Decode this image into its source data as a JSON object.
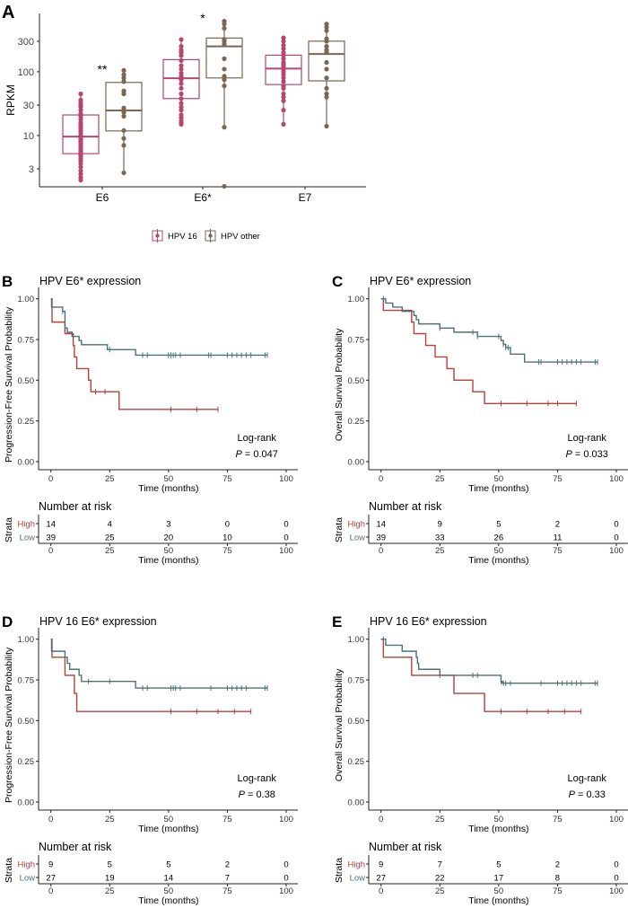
{
  "colors": {
    "hpv16": "#b5476f",
    "hpv_other": "#7a6652",
    "high": "#b5413a",
    "low": "#4d7279",
    "axis": "#222222"
  },
  "chart_data": [
    {
      "type": "box",
      "panel_label": "A",
      "ylabel": "RPKM",
      "yscale": "log",
      "ylim": [
        1.57,
        820
      ],
      "yticks": [
        3,
        10,
        30,
        100,
        300
      ],
      "ytick_labels": [
        "3",
        "10",
        "30",
        "100",
        "300"
      ],
      "categories": [
        "E6",
        "E6*",
        "E7"
      ],
      "annotations": [
        {
          "category": "E6",
          "text": "**"
        },
        {
          "category": "E6*",
          "text": "*"
        }
      ],
      "legend": {
        "position": "bottom",
        "entries": [
          "HPV 16",
          "HPV other"
        ]
      },
      "series": [
        {
          "name": "HPV 16",
          "boxes": [
            {
              "min": 2,
              "q1": 5.2,
              "median": 9.6,
              "q3": 21,
              "max": 45,
              "points": [
                2,
                2.2,
                2.5,
                2.8,
                3.2,
                3.6,
                4,
                4.3,
                4.7,
                5,
                5.3,
                5.7,
                6,
                6.5,
                7,
                7.5,
                8,
                8.5,
                9,
                10,
                11,
                12,
                13,
                14,
                15,
                16,
                18,
                20,
                22,
                25,
                28,
                30,
                33,
                36,
                45
              ]
            },
            {
              "min": 15,
              "q1": 38,
              "median": 79,
              "q3": 155,
              "max": 320,
              "points": [
                15,
                16,
                17,
                19,
                21,
                25,
                28,
                32,
                38,
                45,
                55,
                65,
                75,
                85,
                95,
                110,
                125,
                150,
                180,
                200,
                220,
                250,
                320
              ]
            },
            {
              "min": 15,
              "q1": 63,
              "median": 112,
              "q3": 182,
              "max": 340,
              "points": [
                15,
                25,
                35,
                40,
                45,
                55,
                60,
                70,
                80,
                90,
                100,
                110,
                120,
                130,
                140,
                160,
                180,
                200,
                230,
                260,
                300,
                340
              ]
            }
          ]
        },
        {
          "name": "HPV other",
          "boxes": [
            {
              "min": 2.6,
              "q1": 11.8,
              "median": 24.7,
              "q3": 68,
              "max": 105,
              "points": [
                2.6,
                7,
                9,
                12,
                20,
                23,
                25,
                27,
                45,
                50,
                70,
                80,
                90,
                105
              ]
            },
            {
              "min": 13.5,
              "q1": 80,
              "median": 250,
              "q3": 338,
              "max": 620,
              "outliers": [
                1.6
              ],
              "points": [
                1.6,
                13.5,
                60,
                75,
                85,
                110,
                160,
                270,
                300,
                320,
                480,
                560,
                620
              ]
            },
            {
              "min": 14,
              "q1": 72,
              "median": 190,
              "q3": 302,
              "max": 560,
              "points": [
                14,
                40,
                45,
                55,
                80,
                110,
                140,
                200,
                220,
                250,
                300,
                330,
                440,
                500,
                560
              ]
            }
          ]
        }
      ]
    },
    {
      "type": "line",
      "subtype": "kaplan-meier",
      "panel_label": "B",
      "title": "HPV E6* expression",
      "ylabel": "Progression-Free Survival Probability",
      "xlabel": "Time (months)",
      "xlim": [
        0,
        100
      ],
      "ylim": [
        0,
        1
      ],
      "xticks": [
        "0",
        "25",
        "50",
        "75",
        "100"
      ],
      "yticks": [
        "0.00",
        "0.25",
        "0.50",
        "0.75",
        "1.00"
      ],
      "test_label": "Log-rank",
      "p_label": "P",
      "p_value": "= 0.047",
      "series": [
        {
          "name": "High",
          "steps": [
            [
              0,
              1
            ],
            [
              0.5,
              0.857
            ],
            [
              6,
              0.786
            ],
            [
              9.5,
              0.714
            ],
            [
              10,
              0.643
            ],
            [
              11,
              0.571
            ],
            [
              16,
              0.5
            ],
            [
              17,
              0.429
            ],
            [
              29,
              0.321
            ]
          ],
          "end": 71,
          "censored": [
            19,
            23,
            51,
            62,
            71
          ]
        },
        {
          "name": "Low",
          "steps": [
            [
              0,
              1
            ],
            [
              0.3,
              0.949
            ],
            [
              5,
              0.923
            ],
            [
              6,
              0.82
            ],
            [
              7,
              0.795
            ],
            [
              9,
              0.769
            ],
            [
              12,
              0.744
            ],
            [
              13,
              0.718
            ],
            [
              24,
              0.688
            ],
            [
              36,
              0.654
            ]
          ],
          "end": 92,
          "censored": [
            5,
            25,
            39,
            41,
            50,
            51,
            52,
            53,
            55,
            67,
            68,
            75,
            77,
            79,
            81,
            83,
            85,
            91,
            92
          ]
        }
      ],
      "risk_table": {
        "title": "Number at risk",
        "strata_label": "Strata",
        "times": [
          0,
          25,
          50,
          75,
          100
        ],
        "rows": [
          {
            "name": "High",
            "values": [
              "14",
              "4",
              "3",
              "0",
              "0"
            ]
          },
          {
            "name": "Low",
            "values": [
              "39",
              "25",
              "20",
              "10",
              "0"
            ]
          }
        ]
      }
    },
    {
      "type": "line",
      "subtype": "kaplan-meier",
      "panel_label": "C",
      "title": "HPV E6* expression",
      "ylabel": "Overall Survival Probability",
      "xlabel": "Time (months)",
      "xlim": [
        0,
        100
      ],
      "ylim": [
        0,
        1
      ],
      "xticks": [
        "0",
        "25",
        "50",
        "75",
        "100"
      ],
      "yticks": [
        "0.00",
        "0.25",
        "0.50",
        "0.75",
        "1.00"
      ],
      "test_label": "Log-rank",
      "p_label": "P",
      "p_value": "= 0.033",
      "series": [
        {
          "name": "High",
          "steps": [
            [
              0,
              1
            ],
            [
              1,
              0.929
            ],
            [
              13,
              0.857
            ],
            [
              14,
              0.786
            ],
            [
              19,
              0.714
            ],
            [
              23,
              0.643
            ],
            [
              28,
              0.571
            ],
            [
              31,
              0.5
            ],
            [
              39,
              0.429
            ],
            [
              44,
              0.357
            ]
          ],
          "end": 83,
          "censored": [
            51,
            62,
            71,
            75,
            83
          ]
        },
        {
          "name": "Low",
          "steps": [
            [
              0,
              1
            ],
            [
              2,
              0.974
            ],
            [
              5,
              0.949
            ],
            [
              9,
              0.923
            ],
            [
              14,
              0.897
            ],
            [
              15,
              0.872
            ],
            [
              16,
              0.846
            ],
            [
              25,
              0.82
            ],
            [
              31,
              0.795
            ],
            [
              41,
              0.769
            ],
            [
              51,
              0.744
            ],
            [
              52,
              0.72
            ],
            [
              53,
              0.7
            ],
            [
              55,
              0.66
            ],
            [
              61,
              0.612
            ]
          ],
          "end": 92,
          "censored": [
            1,
            25,
            39,
            41,
            50,
            52,
            53,
            54,
            67,
            68,
            75,
            77,
            79,
            81,
            83,
            85,
            91,
            92
          ]
        }
      ],
      "risk_table": {
        "title": "Number at risk",
        "strata_label": "Strata",
        "times": [
          0,
          25,
          50,
          75,
          100
        ],
        "rows": [
          {
            "name": "High",
            "values": [
              "14",
              "9",
              "5",
              "2",
              "0"
            ]
          },
          {
            "name": "Low",
            "values": [
              "39",
              "33",
              "26",
              "11",
              "0"
            ]
          }
        ]
      }
    },
    {
      "type": "line",
      "subtype": "kaplan-meier",
      "panel_label": "D",
      "title": "HPV 16 E6* expression",
      "ylabel": "Progression-Free Survival Probability",
      "xlabel": "Time (months)",
      "xlim": [
        0,
        100
      ],
      "ylim": [
        0,
        1
      ],
      "xticks": [
        "0",
        "25",
        "50",
        "75",
        "100"
      ],
      "yticks": [
        "0.00",
        "0.25",
        "0.50",
        "0.75",
        "1.00"
      ],
      "test_label": "Log-rank",
      "p_label": "P",
      "p_value": "= 0.38",
      "series": [
        {
          "name": "High",
          "steps": [
            [
              0,
              1
            ],
            [
              0.5,
              0.889
            ],
            [
              6,
              0.778
            ],
            [
              10,
              0.667
            ],
            [
              11,
              0.556
            ]
          ],
          "end": 85,
          "censored": [
            51,
            62,
            71,
            78,
            85
          ]
        },
        {
          "name": "Low",
          "steps": [
            [
              0,
              1
            ],
            [
              0.3,
              0.926
            ],
            [
              6,
              0.889
            ],
            [
              7,
              0.852
            ],
            [
              8,
              0.815
            ],
            [
              12,
              0.778
            ],
            [
              13,
              0.741
            ],
            [
              36,
              0.7
            ]
          ],
          "end": 92,
          "censored": [
            16,
            25,
            39,
            41,
            51,
            52,
            53,
            55,
            68,
            75,
            77,
            79,
            81,
            83,
            91,
            92
          ]
        }
      ],
      "risk_table": {
        "title": "Number at risk",
        "strata_label": "Strata",
        "times": [
          0,
          25,
          50,
          75,
          100
        ],
        "rows": [
          {
            "name": "High",
            "values": [
              "9",
              "5",
              "5",
              "2",
              "0"
            ]
          },
          {
            "name": "Low",
            "values": [
              "27",
              "19",
              "14",
              "7",
              "0"
            ]
          }
        ]
      }
    },
    {
      "type": "line",
      "subtype": "kaplan-meier",
      "panel_label": "E",
      "title": "HPV 16 E6* expression",
      "ylabel": "Overall Survival Probability",
      "xlabel": "Time (months)",
      "xlim": [
        0,
        100
      ],
      "ylim": [
        0,
        1
      ],
      "xticks": [
        "0",
        "25",
        "50",
        "75",
        "100"
      ],
      "yticks": [
        "0.00",
        "0.25",
        "0.50",
        "0.75",
        "1.00"
      ],
      "test_label": "Log-rank",
      "p_label": "P",
      "p_value": "= 0.33",
      "series": [
        {
          "name": "High",
          "steps": [
            [
              0,
              1
            ],
            [
              1,
              0.889
            ],
            [
              13,
              0.778
            ],
            [
              31,
              0.667
            ],
            [
              44,
              0.556
            ]
          ],
          "end": 85,
          "censored": [
            51,
            62,
            71,
            78,
            85
          ]
        },
        {
          "name": "Low",
          "steps": [
            [
              0,
              1
            ],
            [
              2,
              0.963
            ],
            [
              9,
              0.926
            ],
            [
              15,
              0.889
            ],
            [
              15.5,
              0.852
            ],
            [
              16,
              0.815
            ],
            [
              25,
              0.778
            ],
            [
              51,
              0.741
            ],
            [
              51.5,
              0.73
            ]
          ],
          "end": 92,
          "censored": [
            1,
            25,
            39,
            41,
            51,
            52,
            53,
            55,
            68,
            75,
            77,
            79,
            81,
            83,
            85,
            91,
            92
          ]
        }
      ],
      "risk_table": {
        "title": "Number at risk",
        "strata_label": "Strata",
        "times": [
          0,
          25,
          50,
          75,
          100
        ],
        "rows": [
          {
            "name": "High",
            "values": [
              "9",
              "7",
              "5",
              "2",
              "0"
            ]
          },
          {
            "name": "Low",
            "values": [
              "27",
              "22",
              "17",
              "8",
              "0"
            ]
          }
        ]
      }
    }
  ]
}
